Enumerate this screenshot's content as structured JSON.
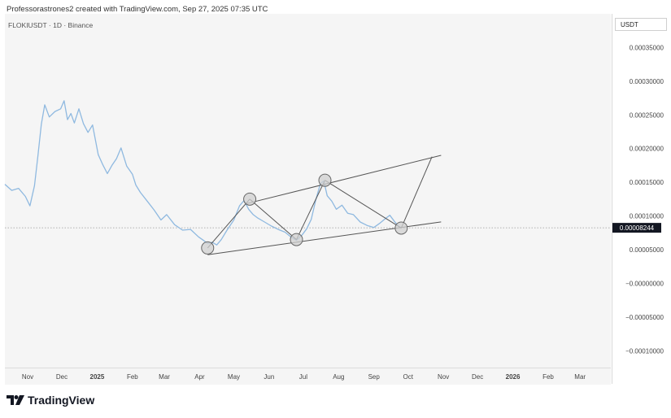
{
  "header": {
    "credit": "Professorastrones2 created with TradingView.com, Sep 27, 2025 07:35 UTC",
    "symbol": "FLOKIUSDT · 1D · Binance"
  },
  "price_scale": {
    "currency": "USDT",
    "current_price_label": "0.00008244"
  },
  "brand": {
    "name": "TradingView"
  },
  "colors": {
    "line": "#8fb9e0",
    "trendline": "#555555",
    "pivot_fill": "#cfcfcf",
    "label_bg": "#131722"
  },
  "chart_data": {
    "type": "line",
    "title": "",
    "ylabel": "USDT",
    "ylim": [
      -0.000125,
      0.0004
    ],
    "y_ticks": [
      {
        "value": 0.00035,
        "label": "0.00035000"
      },
      {
        "value": 0.0003,
        "label": "0.00030000"
      },
      {
        "value": 0.00025,
        "label": "0.00025000"
      },
      {
        "value": 0.0002,
        "label": "0.00020000"
      },
      {
        "value": 0.00015,
        "label": "0.00015000"
      },
      {
        "value": 0.0001,
        "label": "0.00010000"
      },
      {
        "value": 5e-05,
        "label": "0.00005000"
      },
      {
        "value": 0.0,
        "label": "−0.00000000"
      },
      {
        "value": -5e-05,
        "label": "−0.00005000"
      },
      {
        "value": -0.0001,
        "label": "−0.00010000"
      }
    ],
    "x_ticks": [
      {
        "date": "2024-11-01",
        "label": "Nov"
      },
      {
        "date": "2024-12-01",
        "label": "Dec"
      },
      {
        "date": "2025-01-01",
        "label": "2025",
        "bold": true
      },
      {
        "date": "2025-02-01",
        "label": "Feb"
      },
      {
        "date": "2025-03-01",
        "label": "Mar"
      },
      {
        "date": "2025-04-01",
        "label": "Apr"
      },
      {
        "date": "2025-05-01",
        "label": "May"
      },
      {
        "date": "2025-06-01",
        "label": "Jun"
      },
      {
        "date": "2025-07-01",
        "label": "Jul"
      },
      {
        "date": "2025-08-01",
        "label": "Aug"
      },
      {
        "date": "2025-09-01",
        "label": "Sep"
      },
      {
        "date": "2025-10-01",
        "label": "Oct"
      },
      {
        "date": "2025-11-01",
        "label": "Nov"
      },
      {
        "date": "2025-12-01",
        "label": "Dec"
      },
      {
        "date": "2026-01-01",
        "label": "2026",
        "bold": true
      },
      {
        "date": "2026-02-01",
        "label": "Feb"
      },
      {
        "date": "2026-03-01",
        "label": "Mar"
      }
    ],
    "xlim": [
      "2024-10-12",
      "2026-03-28"
    ],
    "current_price": 8.244e-05,
    "series": [
      {
        "x": [
          "2024-10-12",
          "2024-10-18",
          "2024-10-24",
          "2024-10-30",
          "2024-11-03",
          "2024-11-07",
          "2024-11-10",
          "2024-11-13",
          "2024-11-16",
          "2024-11-20",
          "2024-11-25",
          "2024-11-30",
          "2024-12-03",
          "2024-12-06",
          "2024-12-09",
          "2024-12-12",
          "2024-12-16",
          "2024-12-20",
          "2024-12-24",
          "2024-12-28",
          "2025-01-02",
          "2025-01-06",
          "2025-01-10",
          "2025-01-14",
          "2025-01-18",
          "2025-01-22",
          "2025-01-27",
          "2025-02-01",
          "2025-02-04",
          "2025-02-08",
          "2025-02-14",
          "2025-02-20",
          "2025-02-26",
          "2025-03-03",
          "2025-03-10",
          "2025-03-17",
          "2025-03-24",
          "2025-03-31",
          "2025-04-05",
          "2025-04-08",
          "2025-04-12",
          "2025-04-16",
          "2025-04-20",
          "2025-04-25",
          "2025-05-01",
          "2025-05-06",
          "2025-05-10",
          "2025-05-14",
          "2025-05-18",
          "2025-05-22",
          "2025-05-28",
          "2025-06-03",
          "2025-06-09",
          "2025-06-15",
          "2025-06-20",
          "2025-06-25",
          "2025-06-30",
          "2025-07-04",
          "2025-07-08",
          "2025-07-12",
          "2025-07-16",
          "2025-07-19",
          "2025-07-22",
          "2025-07-26",
          "2025-07-30",
          "2025-08-04",
          "2025-08-09",
          "2025-08-14",
          "2025-08-20",
          "2025-08-26",
          "2025-09-01",
          "2025-09-06",
          "2025-09-11",
          "2025-09-15",
          "2025-09-19",
          "2025-09-22",
          "2025-09-25"
        ],
        "y": [
          0.000147,
          0.000138,
          0.000141,
          0.000129,
          0.000115,
          0.000145,
          0.000189,
          0.000236,
          0.000265,
          0.000247,
          0.000255,
          0.000259,
          0.000271,
          0.000243,
          0.000252,
          0.000238,
          0.000259,
          0.000237,
          0.000224,
          0.000235,
          0.000191,
          0.000176,
          0.000163,
          0.000175,
          0.000185,
          0.000201,
          0.000174,
          0.000162,
          0.000146,
          0.000135,
          0.000122,
          0.000109,
          9.4e-05,
          0.000102,
          8.7e-05,
          7.9e-05,
          8e-05,
          6.9e-05,
          6.3e-05,
          5.9e-05,
          6.1e-05,
          5.7e-05,
          6.5e-05,
          7.9e-05,
          9.4e-05,
          0.000115,
          0.000123,
          0.00011,
          0.000102,
          9.7e-05,
          9.1e-05,
          8.5e-05,
          8e-05,
          7.6e-05,
          6.9e-05,
          6.4e-05,
          7.2e-05,
          8.1e-05,
          9.5e-05,
          0.000124,
          0.000148,
          0.000152,
          0.00013,
          0.000122,
          0.00011,
          0.000116,
          0.000104,
          0.000102,
          9.1e-05,
          8.6e-05,
          8.3e-05,
          8.9e-05,
          9.6e-05,
          0.000101,
          9.2e-05,
          8.6e-05,
          8.2e-05
        ]
      }
    ],
    "trendlines": [
      {
        "from": {
          "date": "2025-05-12",
          "value": 0.00011825
        },
        "to": {
          "date": "2025-10-30",
          "value": 0.00019
        }
      },
      {
        "from": {
          "date": "2025-04-08",
          "value": 4.25e-05
        },
        "to": {
          "date": "2025-10-30",
          "value": 9.12e-05
        }
      },
      {
        "from": {
          "date": "2025-04-08",
          "value": 5.25e-05
        },
        "to": {
          "date": "2025-05-15",
          "value": 0.000125
        }
      },
      {
        "from": {
          "date": "2025-05-15",
          "value": 0.000125
        },
        "to": {
          "date": "2025-06-25",
          "value": 6.5e-05
        }
      },
      {
        "from": {
          "date": "2025-06-25",
          "value": 6.5e-05
        },
        "to": {
          "date": "2025-07-20",
          "value": 0.000153
        }
      },
      {
        "from": {
          "date": "2025-07-20",
          "value": 0.000153
        },
        "to": {
          "date": "2025-09-25",
          "value": 8.2e-05
        }
      },
      {
        "from": {
          "date": "2025-09-25",
          "value": 8.2e-05
        },
        "to": {
          "date": "2025-10-22",
          "value": 0.000188
        }
      }
    ],
    "pivots": [
      {
        "date": "2025-04-08",
        "value": 5.25e-05
      },
      {
        "date": "2025-05-15",
        "value": 0.000125
      },
      {
        "date": "2025-06-25",
        "value": 6.5e-05
      },
      {
        "date": "2025-07-20",
        "value": 0.000153
      },
      {
        "date": "2025-09-25",
        "value": 8.2e-05
      }
    ]
  }
}
